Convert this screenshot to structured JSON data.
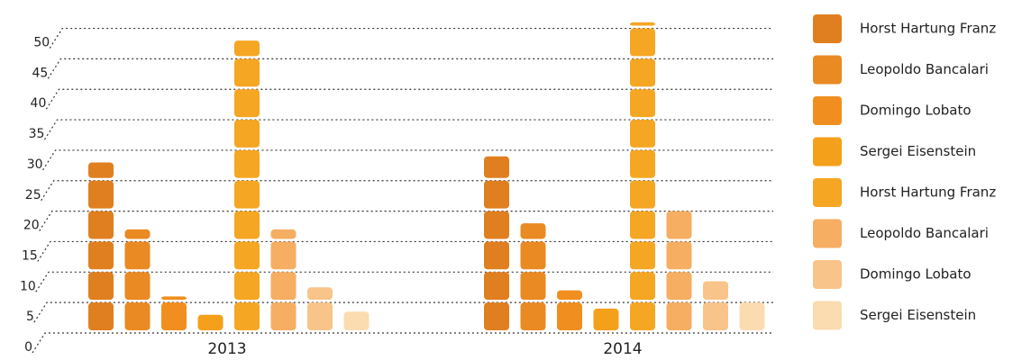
{
  "chart_data": {
    "type": "bar",
    "stacked_blocks": true,
    "categories": [
      "2013",
      "2014"
    ],
    "series": [
      {
        "name": "Horst Hartung Franz",
        "color": "#e07f1f",
        "values": [
          28,
          29
        ]
      },
      {
        "name": "Leopoldo Bancalari",
        "color": "#ea8a22",
        "values": [
          17,
          18
        ]
      },
      {
        "name": "Domingo Lobato",
        "color": "#f08f1f",
        "values": [
          6,
          7
        ]
      },
      {
        "name": "Sergei Eisenstein",
        "color": "#f5a01a",
        "values": [
          3,
          4
        ]
      },
      {
        "name": "Horst Hartung Franz",
        "color": "#f5a623",
        "values": [
          48,
          51
        ]
      },
      {
        "name": "Leopoldo Bancalari",
        "color": "#f5ae62",
        "values": [
          17,
          20
        ]
      },
      {
        "name": "Domingo Lobato",
        "color": "#f8c48a",
        "values": [
          7.5,
          8.5
        ]
      },
      {
        "name": "Sergei Eisenstein",
        "color": "#fbdcb0",
        "values": [
          3.5,
          5
        ]
      }
    ],
    "ylim": [
      0,
      52
    ],
    "yticks": [
      0,
      5,
      10,
      15,
      20,
      25,
      30,
      35,
      40,
      45,
      50
    ],
    "grid": true,
    "legend": "right"
  }
}
